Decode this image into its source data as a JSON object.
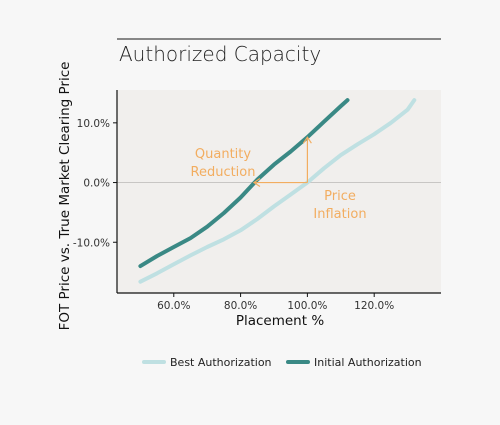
{
  "chart_data": {
    "type": "line",
    "title": "Authorized Capacity",
    "xlabel": "Placement %",
    "ylabel": "FOT Price vs. True Market Clearing Price",
    "xlim": [
      0.43,
      1.4
    ],
    "ylim": [
      -0.185,
      0.155
    ],
    "x_ticks": [
      0.6,
      0.8,
      1.0,
      1.2
    ],
    "x_tick_labels": [
      "60.0%",
      "80.0%",
      "100.0%",
      "120.0%"
    ],
    "y_ticks": [
      0.1,
      0.0,
      -0.1
    ],
    "y_tick_labels": [
      "10.0%",
      "0.0%",
      "-10.0%"
    ],
    "grid": false,
    "legend_position": "bottom",
    "series": [
      {
        "name": "Best Authorization",
        "color": "#bfe0e2",
        "x": [
          0.5,
          0.55,
          0.6,
          0.65,
          0.7,
          0.75,
          0.8,
          0.85,
          0.9,
          0.95,
          1.0,
          1.05,
          1.1,
          1.15,
          1.2,
          1.25,
          1.3,
          1.32
        ],
        "y": [
          -0.166,
          -0.152,
          -0.137,
          -0.122,
          -0.108,
          -0.095,
          -0.08,
          -0.061,
          -0.04,
          -0.02,
          0.0,
          0.024,
          0.046,
          0.064,
          0.081,
          0.1,
          0.122,
          0.138
        ]
      },
      {
        "name": "Initial Authorization",
        "color": "#3a8985",
        "x": [
          0.5,
          0.55,
          0.6,
          0.65,
          0.7,
          0.75,
          0.8,
          0.85,
          0.9,
          0.95,
          1.0,
          1.05,
          1.1,
          1.12
        ],
        "y": [
          -0.14,
          -0.123,
          -0.108,
          -0.093,
          -0.074,
          -0.051,
          -0.025,
          0.005,
          0.03,
          0.052,
          0.076,
          0.102,
          0.128,
          0.138
        ]
      }
    ],
    "annotations": [
      {
        "label": "Quantity",
        "label2": "Reduction",
        "color": "#f2ad60",
        "arrow_from": [
          1.0,
          0.0
        ],
        "arrow_to": [
          0.84,
          0.0
        ]
      },
      {
        "label": "Price",
        "label2": "Inflation",
        "color": "#f2ad60",
        "arrow_from": [
          1.0,
          0.0
        ],
        "arrow_to": [
          1.0,
          0.076
        ]
      }
    ]
  }
}
